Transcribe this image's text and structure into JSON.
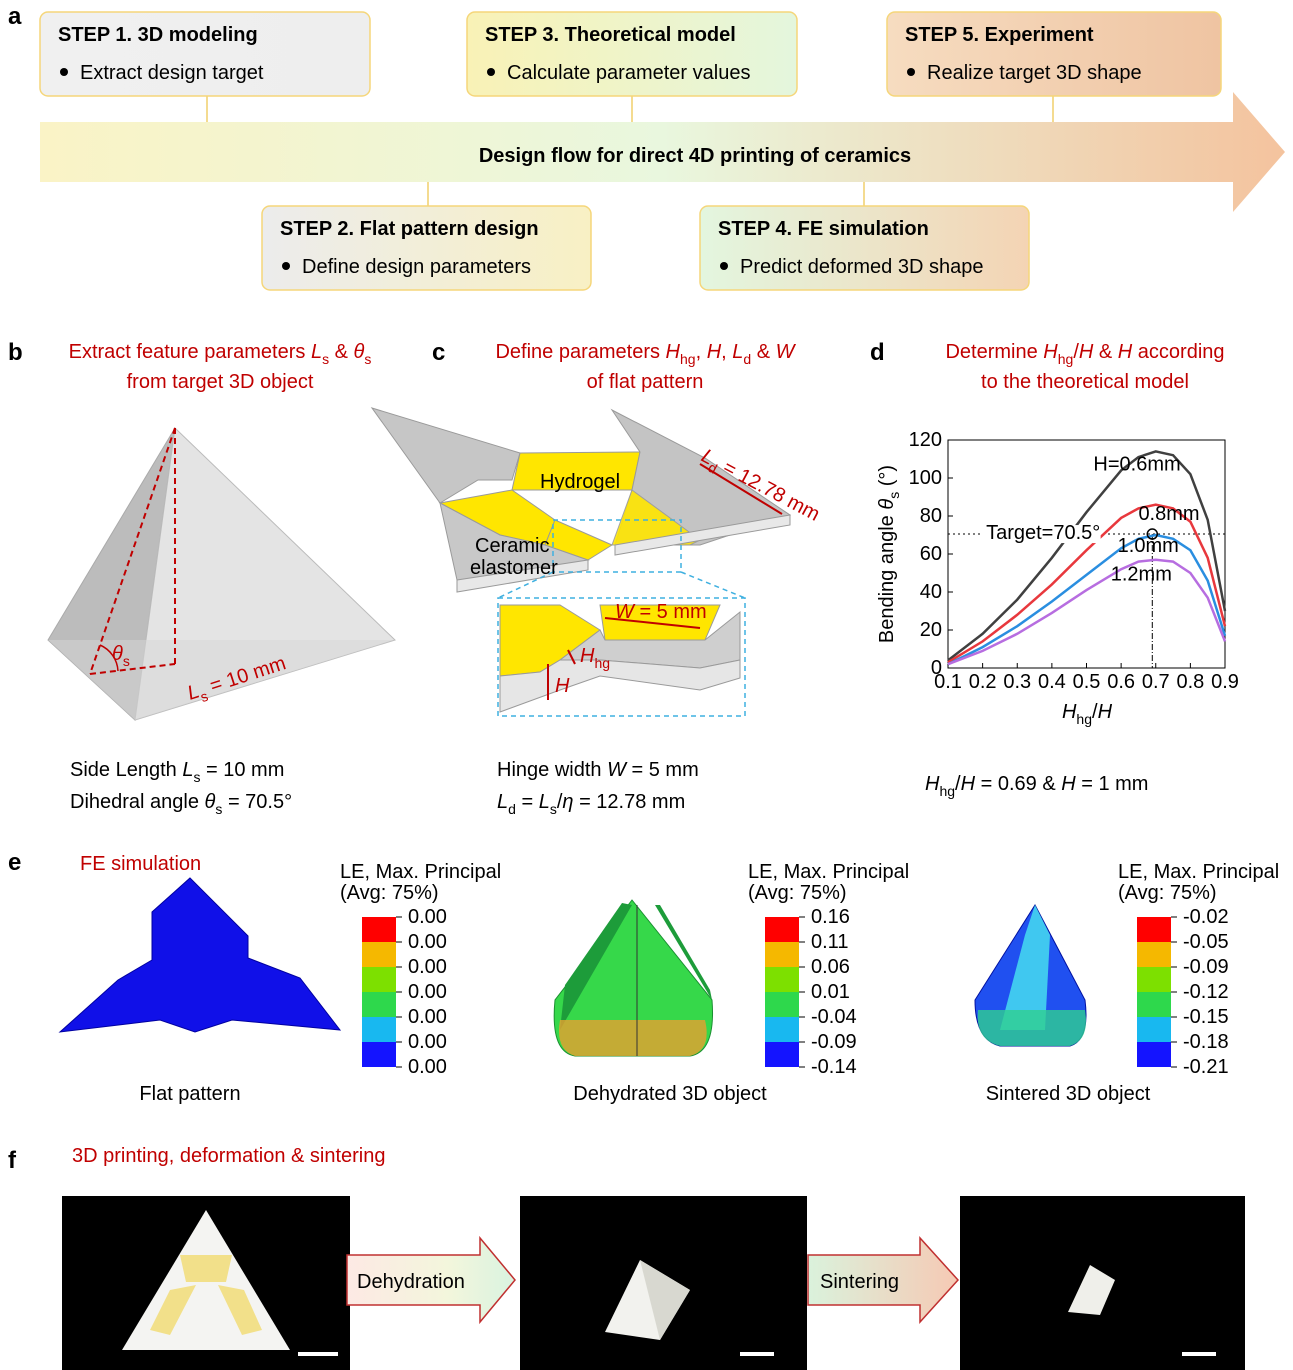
{
  "panel_labels": [
    "a",
    "b",
    "c",
    "d",
    "e",
    "f"
  ],
  "flow": {
    "title": "Design flow for direct 4D printing of ceramics",
    "steps": [
      {
        "title": "STEP 1. 3D modeling",
        "item": "Extract design target"
      },
      {
        "title": "STEP 2. Flat pattern design",
        "item": "Define design parameters"
      },
      {
        "title": "STEP 3. Theoretical model",
        "item": "Calculate parameter values"
      },
      {
        "title": "STEP 4. FE simulation",
        "item": "Predict deformed 3D shape"
      },
      {
        "title": "STEP 5. Experiment",
        "item": "Realize target 3D shape"
      }
    ]
  },
  "b": {
    "heading": [
      [
        "Extract feature parameters ",
        "L",
        "s",
        " & ",
        "θ",
        "s"
      ],
      [
        "from target 3D object"
      ]
    ],
    "theta": [
      "θ",
      "s"
    ],
    "length": [
      "L",
      "s",
      " = 10 mm"
    ],
    "caption": [
      [
        "Side Length ",
        "L",
        "s",
        " = 10 mm"
      ],
      [
        "Dihedral angle ",
        "θ",
        "s",
        " = 70.5°"
      ]
    ]
  },
  "c": {
    "heading": [
      [
        "Define parameters ",
        "H",
        "hg",
        ", ",
        "H",
        ", ",
        "L",
        "d",
        " & ",
        "W"
      ],
      [
        "of flat pattern"
      ]
    ],
    "hydrogel": "Hydrogel",
    "ceramic": [
      "Ceramic",
      "elastomer"
    ],
    "ld": [
      "L",
      "d",
      " = 12.78 mm"
    ],
    "w": [
      "W",
      " = 5 mm"
    ],
    "hhg": [
      "H",
      "hg"
    ],
    "h": "H",
    "caption": [
      [
        "Hinge width ",
        "W",
        " = 5 mm"
      ],
      [
        "L",
        "d",
        " = ",
        "L",
        "s",
        "/",
        "η",
        " = 12.78 mm"
      ]
    ]
  },
  "d": {
    "heading": [
      [
        "Determine ",
        "H",
        "hg",
        "/",
        "H",
        " & ",
        "H",
        " according"
      ],
      [
        "to the theoretical model"
      ]
    ],
    "result": [
      "H",
      "hg",
      "/",
      "H",
      " = 0.69 & ",
      "H",
      " = 1 mm"
    ]
  },
  "chart_data": {
    "type": "line",
    "xlabel": [
      "H",
      "hg",
      "/",
      "H"
    ],
    "ylabel": [
      "Bending angle ",
      "θ",
      "s",
      " (°)"
    ],
    "x": [
      0.1,
      0.2,
      0.3,
      0.4,
      0.5,
      0.6,
      0.65,
      0.7,
      0.75,
      0.8,
      0.85,
      0.9
    ],
    "series": [
      {
        "name": "H=0.6mm",
        "color": "#404040",
        "values": [
          4,
          18,
          36,
          58,
          82,
          104,
          111,
          114,
          112,
          102,
          78,
          30
        ]
      },
      {
        "name": "0.8mm",
        "color": "#e8383d",
        "values": [
          3,
          14,
          28,
          44,
          62,
          79,
          84,
          86,
          84,
          77,
          58,
          22
        ]
      },
      {
        "name": "1.0mm",
        "color": "#2a8ee0",
        "values": [
          2,
          11,
          22,
          35,
          49,
          63,
          68,
          70,
          68,
          62,
          46,
          17
        ]
      },
      {
        "name": "1.2mm",
        "color": "#b76de0",
        "values": [
          2,
          9,
          18,
          29,
          41,
          52,
          56,
          57,
          56,
          50,
          37,
          14
        ]
      }
    ],
    "xlim": [
      0.1,
      0.9
    ],
    "xticks": [
      0.1,
      0.2,
      0.3,
      0.4,
      0.5,
      0.6,
      0.7,
      0.8,
      0.9
    ],
    "ylim": [
      0,
      120
    ],
    "yticks": [
      0,
      20,
      40,
      60,
      80,
      100,
      120
    ],
    "target": {
      "label": "Target=70.5°",
      "x": 0.69,
      "y": 70.5
    }
  },
  "e": {
    "heading": "FE simulation",
    "colors": [
      "#ff0000",
      "#f5b800",
      "#7de000",
      "#2ed84c",
      "#18b8f0",
      "#1414ff"
    ],
    "legends": [
      {
        "title": [
          "LE, Max. Principal",
          "(Avg: 75%)"
        ],
        "ticks": [
          "0.00",
          "0.00",
          "0.00",
          "0.00",
          "0.00",
          "0.00",
          "0.00"
        ]
      },
      {
        "title": [
          "LE, Max. Principal",
          "(Avg: 75%)"
        ],
        "ticks": [
          "0.16",
          "0.11",
          "0.06",
          "0.01",
          "-0.04",
          "-0.09",
          "-0.14"
        ]
      },
      {
        "title": [
          "LE, Max. Principal",
          "(Avg: 75%)"
        ],
        "ticks": [
          "-0.02",
          "-0.05",
          "-0.09",
          "-0.12",
          "-0.15",
          "-0.18",
          "-0.21"
        ]
      }
    ],
    "captions": [
      "Flat pattern",
      "Dehydrated 3D object",
      "Sintered 3D object"
    ]
  },
  "f": {
    "heading": "3D printing, deformation & sintering",
    "arrows": [
      "Dehydration",
      "Sintering"
    ]
  }
}
